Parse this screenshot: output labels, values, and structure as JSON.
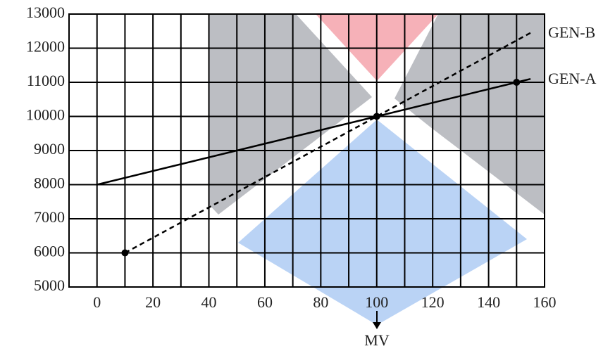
{
  "chart_data": {
    "type": "line",
    "xlabel": "MV",
    "xlim": [
      -10,
      160
    ],
    "xticks": [
      0,
      20,
      40,
      60,
      80,
      100,
      120,
      140,
      160
    ],
    "ylim": [
      5000,
      13000
    ],
    "yticks": [
      5000,
      6000,
      7000,
      8000,
      9000,
      10000,
      11000,
      12000,
      13000
    ],
    "grid": true,
    "series": [
      {
        "name": "GEN-A",
        "color": "#000000",
        "dashed": false,
        "x": [
          0,
          100,
          150,
          155
        ],
        "values": [
          8000,
          10000,
          11000,
          11100
        ]
      },
      {
        "name": "GEN-B",
        "color": "#000000",
        "dashed": true,
        "x": [
          10,
          100,
          155
        ],
        "values": [
          6000,
          10000,
          12450
        ]
      }
    ],
    "markers": {
      "x": [
        10,
        100,
        150
      ],
      "values": [
        6000,
        10000,
        11000
      ]
    }
  }
}
